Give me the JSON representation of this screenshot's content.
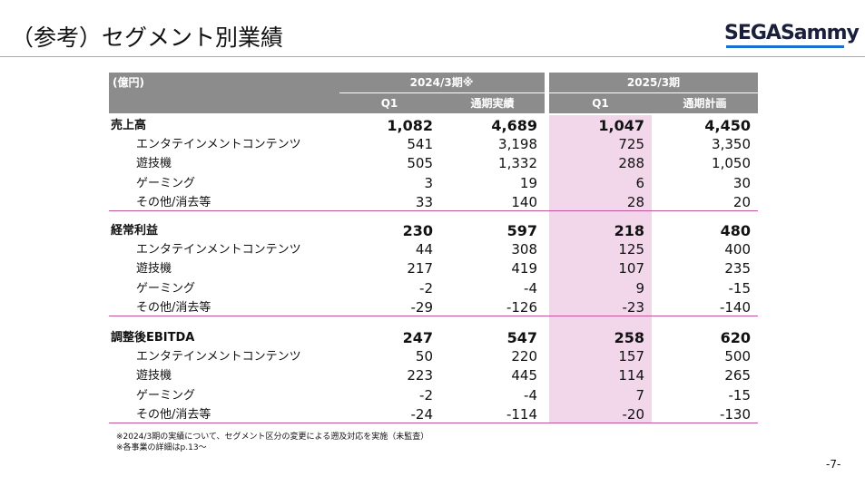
{
  "header": {
    "title": "（参考）セグメント別業績",
    "logo": "SEGASammy"
  },
  "table": {
    "unit": "(億円)",
    "groups": [
      "2024/3期※",
      "2025/3期"
    ],
    "columns": [
      "Q1",
      "通期実績",
      "Q1",
      "通期計画"
    ],
    "sections": [
      {
        "rows": [
          [
            "売上高",
            "1,082",
            "4,689",
            "1,047",
            "4,450"
          ],
          [
            "エンタテインメントコンテンツ",
            "541",
            "3,198",
            "725",
            "3,350"
          ],
          [
            "遊技機",
            "505",
            "1,332",
            "288",
            "1,050"
          ],
          [
            "ゲーミング",
            "3",
            "19",
            "6",
            "30"
          ],
          [
            "その他/消去等",
            "33",
            "140",
            "28",
            "20"
          ]
        ]
      },
      {
        "rows": [
          [
            "経常利益",
            "230",
            "597",
            "218",
            "480"
          ],
          [
            "エンタテインメントコンテンツ",
            "44",
            "308",
            "125",
            "400"
          ],
          [
            "遊技機",
            "217",
            "419",
            "107",
            "235"
          ],
          [
            "ゲーミング",
            "-2",
            "-4",
            "9",
            "-15"
          ],
          [
            "その他/消去等",
            "-29",
            "-126",
            "-23",
            "-140"
          ]
        ]
      },
      {
        "rows": [
          [
            "調整後EBITDA",
            "247",
            "547",
            "258",
            "620"
          ],
          [
            "エンタテインメントコンテンツ",
            "50",
            "220",
            "157",
            "500"
          ],
          [
            "遊技機",
            "223",
            "445",
            "114",
            "265"
          ],
          [
            "ゲーミング",
            "-2",
            "-4",
            "7",
            "-15"
          ],
          [
            "その他/消去等",
            "-24",
            "-114",
            "-20",
            "-130"
          ]
        ]
      }
    ]
  },
  "footnotes": [
    "※2024/3期の実績について、セグメント区分の変更による遡及対応を実施（未監査）",
    "※各事業の詳細はp.13～"
  ],
  "page_number": "-7-"
}
